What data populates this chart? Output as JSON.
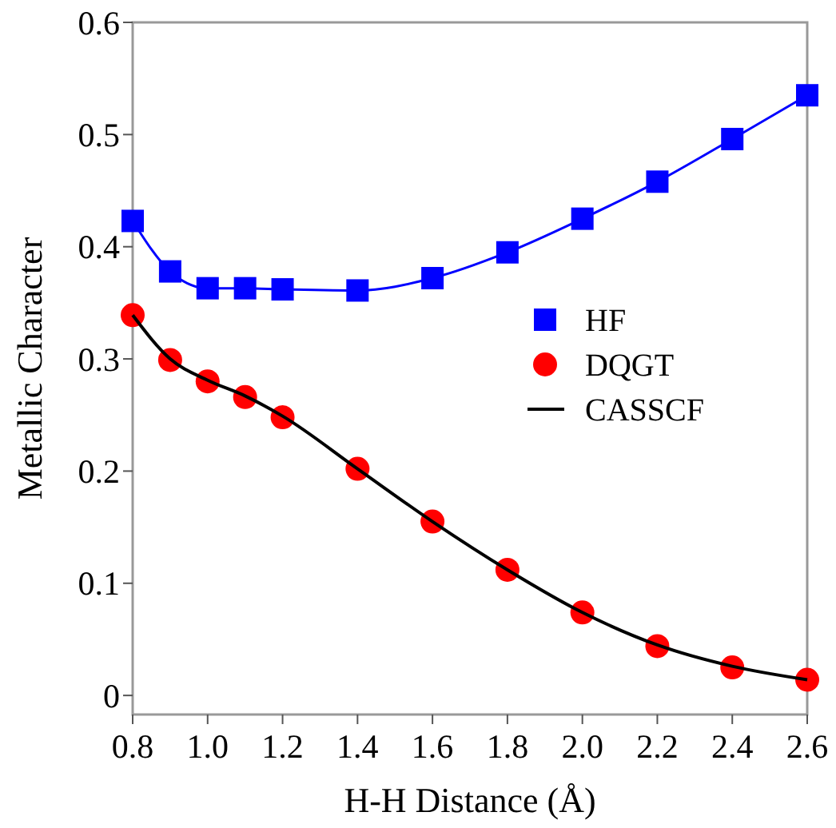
{
  "chart_data": {
    "type": "line",
    "xlabel": "H-H Distance (Å)",
    "ylabel": "Metallic Character",
    "x": [
      0.8,
      0.9,
      1.0,
      1.1,
      1.2,
      1.4,
      1.6,
      1.8,
      2.0,
      2.2,
      2.4,
      2.6
    ],
    "series": [
      {
        "name": "HF",
        "marker": "square",
        "color": "#0000ff",
        "values": [
          0.423,
          0.378,
          0.363,
          0.363,
          0.362,
          0.361,
          0.372,
          0.395,
          0.425,
          0.458,
          0.496,
          0.535
        ]
      },
      {
        "name": "DQGT",
        "type": "scatter",
        "marker": "circle",
        "color": "#ff0000",
        "values": [
          0.339,
          0.299,
          0.28,
          0.266,
          0.248,
          0.202,
          0.155,
          0.112,
          0.074,
          0.044,
          0.025,
          0.014
        ]
      },
      {
        "name": "CASSCF",
        "marker": "none",
        "color": "#000000",
        "values": [
          0.339,
          0.3,
          0.281,
          0.267,
          0.249,
          0.202,
          0.155,
          0.112,
          0.074,
          0.045,
          0.026,
          0.014
        ]
      }
    ],
    "xlim": [
      0.8,
      2.6
    ],
    "ylim": [
      -0.017,
      0.6
    ],
    "xticks": [
      {
        "value": 0.8,
        "label": "0.8"
      },
      {
        "value": 1,
        "label": "1.0"
      },
      {
        "value": 1.2,
        "label": "1.2"
      },
      {
        "value": 1.4,
        "label": "1.4"
      },
      {
        "value": 1.6,
        "label": "1.6"
      },
      {
        "value": 1.8,
        "label": "1.8"
      },
      {
        "value": 2,
        "label": "2.0"
      },
      {
        "value": 2.2,
        "label": "2.2"
      },
      {
        "value": 2.4,
        "label": "2.4"
      },
      {
        "value": 2.6,
        "label": "2.6"
      }
    ],
    "yticks": [
      0,
      0.1,
      0.2,
      0.3,
      0.4,
      0.5,
      0.6
    ],
    "grid": false,
    "legend": "right"
  }
}
